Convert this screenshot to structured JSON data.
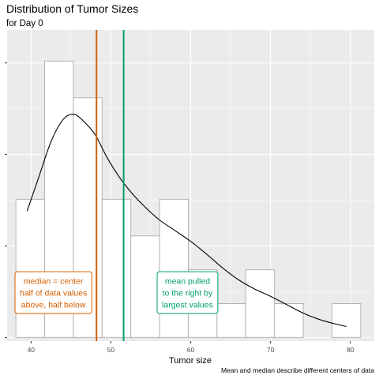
{
  "chart_data": {
    "type": "histogram",
    "title": "Distribution of Tumor Sizes",
    "subtitle": "for Day 0",
    "xlabel": "Tumor size",
    "ylabel": "",
    "caption": "Mean and median describe different centers of data",
    "xlim": [
      37,
      83
    ],
    "ylim": [
      -0.0004,
      0.0336
    ],
    "x_ticks": [
      40,
      50,
      60,
      70,
      80
    ],
    "x_tick_labels": [
      "40",
      "50",
      "60",
      "70",
      "80"
    ],
    "y_ticks": [
      0,
      0.01,
      0.02,
      0.03
    ],
    "y_tick_labels": [
      "",
      "",
      "",
      ""
    ],
    "grid": true,
    "bins": [
      {
        "start": 38.1,
        "end": 41.7,
        "value": 0.0151
      },
      {
        "start": 41.7,
        "end": 45.3,
        "value": 0.0302
      },
      {
        "start": 45.3,
        "end": 48.9,
        "value": 0.0262
      },
      {
        "start": 48.9,
        "end": 52.5,
        "value": 0.0151
      },
      {
        "start": 52.5,
        "end": 56.1,
        "value": 0.0111
      },
      {
        "start": 56.1,
        "end": 59.7,
        "value": 0.0151
      },
      {
        "start": 59.7,
        "end": 63.3,
        "value": 0.0074
      },
      {
        "start": 63.3,
        "end": 66.9,
        "value": 0.0037
      },
      {
        "start": 66.9,
        "end": 70.5,
        "value": 0.0074
      },
      {
        "start": 70.5,
        "end": 74.1,
        "value": 0.0037
      },
      {
        "start": 74.1,
        "end": 77.7,
        "value": 0.0
      },
      {
        "start": 77.7,
        "end": 81.3,
        "value": 0.0037
      }
    ],
    "density_curve": {
      "x": [
        39.5,
        41,
        42.5,
        44,
        45.3,
        46.5,
        48,
        49.5,
        51,
        52.5,
        54,
        56,
        58,
        60,
        62,
        64,
        66,
        68,
        70,
        72,
        74,
        76,
        78,
        79.5
      ],
      "y": [
        0.0138,
        0.0176,
        0.0214,
        0.0238,
        0.0244,
        0.0237,
        0.0222,
        0.0197,
        0.0176,
        0.0159,
        0.0145,
        0.0129,
        0.0117,
        0.0105,
        0.0091,
        0.0076,
        0.0063,
        0.0053,
        0.0045,
        0.0036,
        0.0027,
        0.002,
        0.0015,
        0.0012
      ]
    },
    "reference_lines": [
      {
        "stat": "median",
        "value": 48.2,
        "color": "#d55e00"
      },
      {
        "stat": "mean",
        "value": 51.6,
        "color": "#009e73"
      }
    ],
    "annotations": [
      {
        "stat": "median",
        "lines": [
          "median = center",
          "half of data values",
          "above, half below"
        ],
        "color": "#d55e00",
        "x": 42.8,
        "y": 0.0049
      },
      {
        "stat": "mean",
        "lines": [
          "mean pulled",
          "to the right by",
          "largest values"
        ],
        "color": "#009e73",
        "x": 59.6,
        "y": 0.0049
      }
    ],
    "colors": {
      "panel": "#ebebeb",
      "grid_major": "#ffffff",
      "bar_fill": "#ffffff",
      "bar_outline": "#b3b3b3",
      "curve": "#000000"
    }
  }
}
